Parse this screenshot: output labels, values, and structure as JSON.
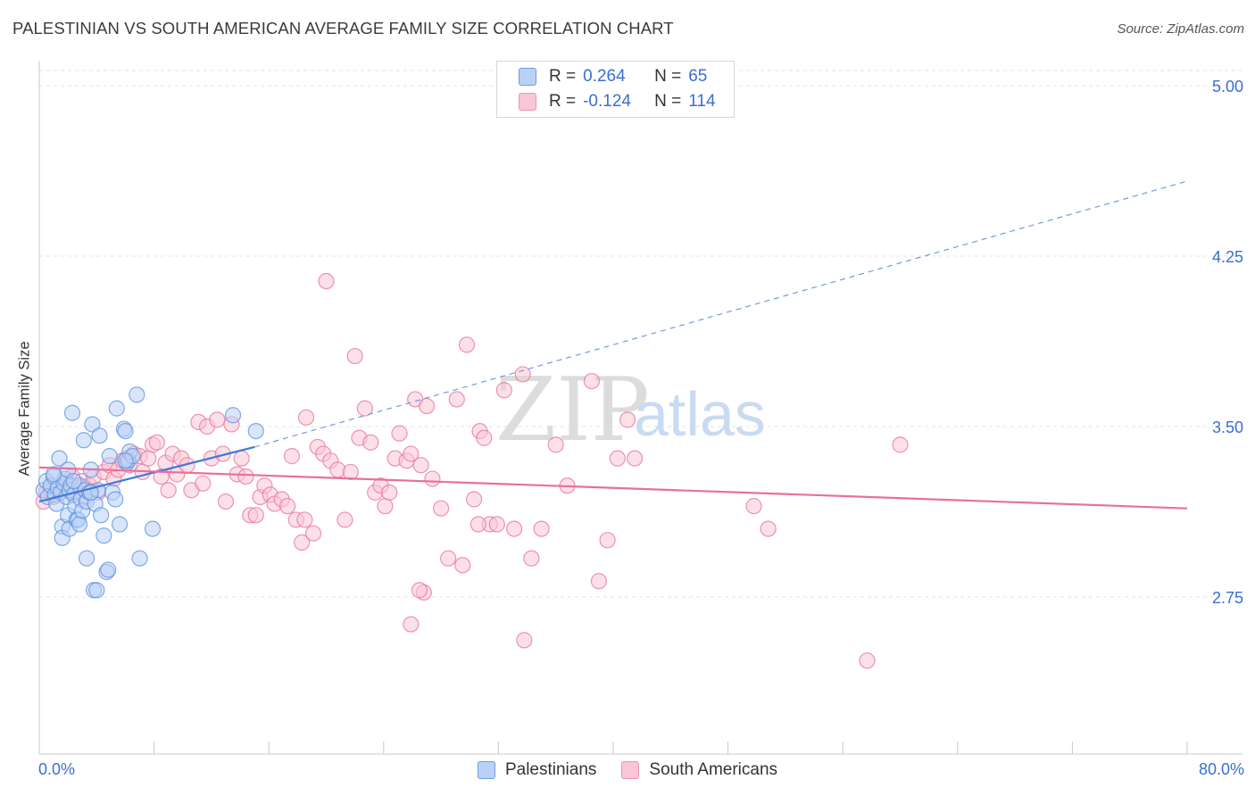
{
  "title": "PALESTINIAN VS SOUTH AMERICAN AVERAGE FAMILY SIZE CORRELATION CHART",
  "source": "Source: ZipAtlas.com",
  "watermark": {
    "zip": "ZIP",
    "atlas": "atlas"
  },
  "legend": {
    "r_label": "R =",
    "n_label": "N =",
    "rows": [
      {
        "r": "0.264",
        "n": "65",
        "fill": "#b9d1f5",
        "stroke": "#6f9be0"
      },
      {
        "r": "-0.124",
        "n": "114",
        "fill": "#f9c6d6",
        "stroke": "#ee93b0"
      }
    ]
  },
  "bottom_legend": [
    {
      "label": "Palestinians",
      "fill": "#b9d1f5",
      "stroke": "#6f9be0"
    },
    {
      "label": "South Americans",
      "fill": "#f9c6d6",
      "stroke": "#ee93b0"
    }
  ],
  "x_axis": {
    "min_label": "0.0%",
    "max_label": "80.0%"
  },
  "chart_data": {
    "type": "scatter",
    "title": "PALESTINIAN VS SOUTH AMERICAN AVERAGE FAMILY SIZE CORRELATION CHART",
    "xlabel": "",
    "ylabel": "Average Family Size",
    "xlim": [
      0,
      80
    ],
    "ylim": [
      2.0,
      5.1
    ],
    "y_ticks": [
      2.75,
      3.5,
      4.25,
      5.0
    ],
    "y_tick_labels": [
      "2.75",
      "3.50",
      "4.25",
      "5.00"
    ],
    "grid": "horizontal dashed",
    "series": [
      {
        "name": "Palestinians",
        "color": "#5a8fe0",
        "fill": "#b9d1f5",
        "trend": {
          "x0": 0,
          "y0": 3.17,
          "x1": 15,
          "y1": 3.41,
          "dashed_to_x": 80,
          "dashed_to_y": 4.58
        },
        "points": [
          [
            0.3,
            3.22
          ],
          [
            0.5,
            3.26
          ],
          [
            0.6,
            3.19
          ],
          [
            0.8,
            3.24
          ],
          [
            1.0,
            3.28
          ],
          [
            1.1,
            3.2
          ],
          [
            1.2,
            3.16
          ],
          [
            1.3,
            3.23
          ],
          [
            1.4,
            3.36
          ],
          [
            1.5,
            3.21
          ],
          [
            1.6,
            3.06
          ],
          [
            1.6,
            3.01
          ],
          [
            1.7,
            3.25
          ],
          [
            1.8,
            3.27
          ],
          [
            1.9,
            3.19
          ],
          [
            2.0,
            3.31
          ],
          [
            2.0,
            3.11
          ],
          [
            2.1,
            3.05
          ],
          [
            2.1,
            3.22
          ],
          [
            2.2,
            3.24
          ],
          [
            2.3,
            3.56
          ],
          [
            2.4,
            3.2
          ],
          [
            2.5,
            3.15
          ],
          [
            2.6,
            3.09
          ],
          [
            2.7,
            3.09
          ],
          [
            2.8,
            3.07
          ],
          [
            2.8,
            3.24
          ],
          [
            2.9,
            3.18
          ],
          [
            3.0,
            3.13
          ],
          [
            3.1,
            3.44
          ],
          [
            3.2,
            3.22
          ],
          [
            3.3,
            2.92
          ],
          [
            3.3,
            3.17
          ],
          [
            3.5,
            3.21
          ],
          [
            3.6,
            3.31
          ],
          [
            3.7,
            3.51
          ],
          [
            3.8,
            2.78
          ],
          [
            3.9,
            3.16
          ],
          [
            4.0,
            2.78
          ],
          [
            4.1,
            3.22
          ],
          [
            4.2,
            3.46
          ],
          [
            4.3,
            3.11
          ],
          [
            4.5,
            3.02
          ],
          [
            4.7,
            2.86
          ],
          [
            4.8,
            2.87
          ],
          [
            4.9,
            3.37
          ],
          [
            5.1,
            3.21
          ],
          [
            5.3,
            3.18
          ],
          [
            5.4,
            3.58
          ],
          [
            5.6,
            3.07
          ],
          [
            5.9,
            3.49
          ],
          [
            6.0,
            3.48
          ],
          [
            6.1,
            3.34
          ],
          [
            6.2,
            3.35
          ],
          [
            6.3,
            3.39
          ],
          [
            6.5,
            3.37
          ],
          [
            6.8,
            3.64
          ],
          [
            7.0,
            2.92
          ],
          [
            7.9,
            3.05
          ],
          [
            13.5,
            3.55
          ],
          [
            15.1,
            3.48
          ],
          [
            2.4,
            3.26
          ],
          [
            1.0,
            3.29
          ],
          [
            3.6,
            3.21
          ],
          [
            6.0,
            3.35
          ]
        ]
      },
      {
        "name": "South Americans",
        "color": "#e8709a",
        "fill": "#f9c6d6",
        "trend": {
          "x0": 0,
          "y0": 3.32,
          "x1": 80,
          "y1": 3.14
        },
        "points": [
          [
            0.3,
            3.17
          ],
          [
            0.5,
            3.21
          ],
          [
            0.8,
            3.22
          ],
          [
            1.0,
            3.19
          ],
          [
            1.3,
            3.24
          ],
          [
            1.7,
            3.22
          ],
          [
            2.0,
            3.25
          ],
          [
            2.3,
            3.28
          ],
          [
            2.5,
            3.2
          ],
          [
            2.8,
            3.23
          ],
          [
            3.0,
            3.26
          ],
          [
            3.2,
            3.19
          ],
          [
            3.5,
            3.24
          ],
          [
            3.8,
            3.28
          ],
          [
            4.1,
            3.21
          ],
          [
            4.5,
            3.3
          ],
          [
            4.9,
            3.33
          ],
          [
            5.2,
            3.27
          ],
          [
            5.5,
            3.31
          ],
          [
            5.8,
            3.35
          ],
          [
            6.1,
            3.36
          ],
          [
            6.3,
            3.33
          ],
          [
            6.6,
            3.38
          ],
          [
            7.0,
            3.37
          ],
          [
            7.2,
            3.3
          ],
          [
            7.6,
            3.36
          ],
          [
            7.9,
            3.42
          ],
          [
            8.2,
            3.43
          ],
          [
            8.5,
            3.28
          ],
          [
            8.8,
            3.34
          ],
          [
            9.0,
            3.22
          ],
          [
            9.3,
            3.38
          ],
          [
            9.6,
            3.29
          ],
          [
            9.9,
            3.36
          ],
          [
            10.3,
            3.33
          ],
          [
            10.6,
            3.22
          ],
          [
            11.1,
            3.52
          ],
          [
            11.4,
            3.25
          ],
          [
            11.7,
            3.5
          ],
          [
            12.0,
            3.36
          ],
          [
            12.4,
            3.53
          ],
          [
            12.8,
            3.38
          ],
          [
            13.0,
            3.17
          ],
          [
            13.4,
            3.51
          ],
          [
            13.8,
            3.29
          ],
          [
            14.1,
            3.36
          ],
          [
            14.4,
            3.28
          ],
          [
            14.7,
            3.11
          ],
          [
            15.1,
            3.11
          ],
          [
            15.4,
            3.19
          ],
          [
            15.7,
            3.24
          ],
          [
            16.1,
            3.2
          ],
          [
            16.4,
            3.16
          ],
          [
            16.9,
            3.18
          ],
          [
            17.3,
            3.15
          ],
          [
            17.6,
            3.37
          ],
          [
            17.9,
            3.09
          ],
          [
            18.3,
            2.99
          ],
          [
            18.6,
            3.54
          ],
          [
            19.1,
            3.03
          ],
          [
            19.4,
            3.41
          ],
          [
            19.8,
            3.38
          ],
          [
            20.0,
            4.14
          ],
          [
            20.3,
            3.35
          ],
          [
            20.8,
            3.31
          ],
          [
            21.3,
            3.09
          ],
          [
            21.7,
            3.3
          ],
          [
            22.0,
            3.81
          ],
          [
            22.3,
            3.45
          ],
          [
            22.7,
            3.58
          ],
          [
            23.1,
            3.43
          ],
          [
            23.4,
            3.21
          ],
          [
            23.8,
            3.24
          ],
          [
            24.1,
            3.15
          ],
          [
            24.4,
            3.21
          ],
          [
            24.8,
            3.36
          ],
          [
            25.1,
            3.47
          ],
          [
            25.6,
            3.35
          ],
          [
            25.9,
            3.38
          ],
          [
            26.2,
            3.62
          ],
          [
            26.6,
            3.33
          ],
          [
            27.0,
            3.59
          ],
          [
            27.4,
            3.27
          ],
          [
            28.0,
            3.14
          ],
          [
            28.5,
            2.92
          ],
          [
            29.1,
            3.62
          ],
          [
            29.5,
            2.89
          ],
          [
            30.3,
            3.18
          ],
          [
            30.7,
            3.48
          ],
          [
            31.0,
            3.45
          ],
          [
            31.4,
            3.07
          ],
          [
            31.9,
            3.07
          ],
          [
            32.4,
            3.66
          ],
          [
            33.1,
            3.05
          ],
          [
            33.7,
            3.73
          ],
          [
            34.3,
            2.92
          ],
          [
            35.0,
            3.05
          ],
          [
            36.0,
            3.42
          ],
          [
            36.8,
            3.24
          ],
          [
            38.5,
            3.7
          ],
          [
            39.0,
            2.82
          ],
          [
            39.6,
            3.0
          ],
          [
            40.3,
            3.36
          ],
          [
            41.0,
            3.53
          ],
          [
            41.5,
            3.36
          ],
          [
            49.8,
            3.15
          ],
          [
            50.8,
            3.05
          ],
          [
            57.7,
            2.47
          ],
          [
            60.0,
            3.42
          ],
          [
            18.5,
            3.09
          ],
          [
            25.9,
            2.63
          ],
          [
            26.8,
            2.77
          ],
          [
            30.6,
            3.07
          ],
          [
            33.8,
            2.56
          ],
          [
            26.5,
            2.78
          ],
          [
            29.8,
            3.86
          ]
        ]
      }
    ]
  }
}
